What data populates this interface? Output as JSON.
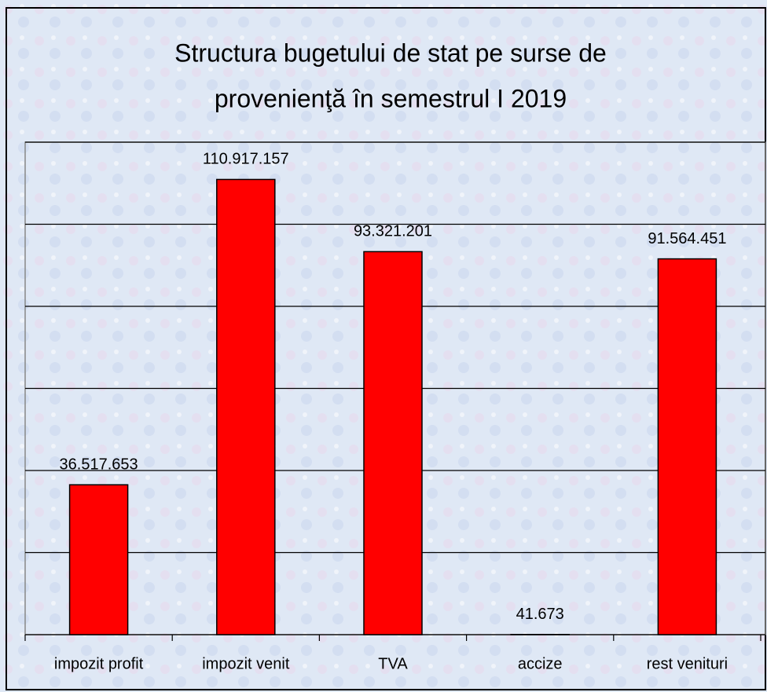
{
  "chart_data": {
    "type": "bar",
    "title": [
      "Structura bugetului de stat pe surse de",
      "provenienţă în semestrul I 2019"
    ],
    "categories": [
      "impozit profit",
      "impozit venit",
      "TVA",
      "accize",
      "rest venituri"
    ],
    "values": [
      36517653,
      110917157,
      93321201,
      41673,
      91564451
    ],
    "value_labels": [
      "36.517.653",
      "110.917.157",
      "93.321.201",
      "41.673",
      "91.564.451"
    ],
    "color": "#ff0000",
    "ylim": [
      0,
      120000000
    ],
    "yticks": [
      0,
      20000000,
      40000000,
      60000000,
      80000000,
      100000000,
      120000000
    ],
    "grid": true
  }
}
